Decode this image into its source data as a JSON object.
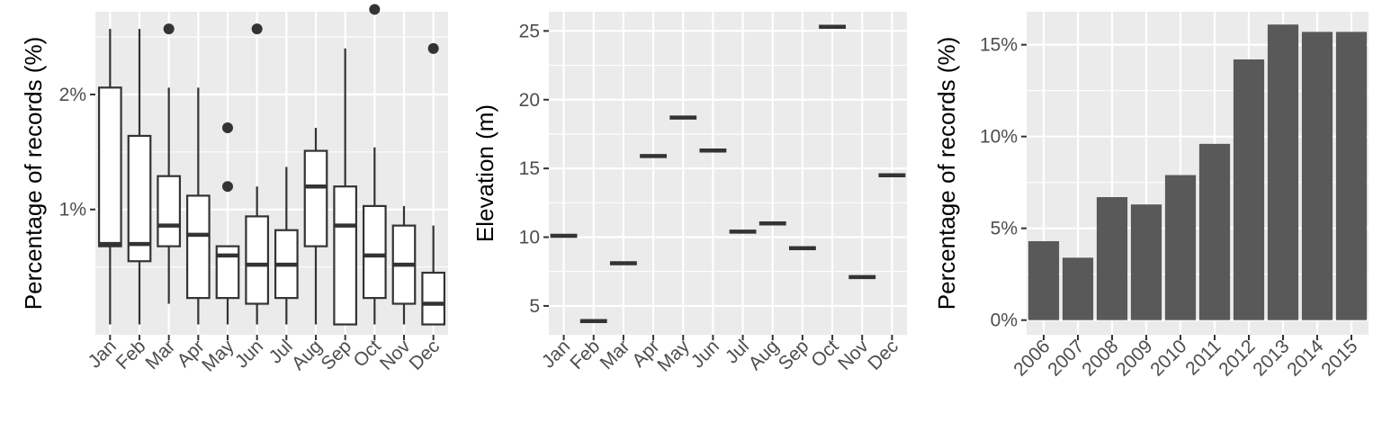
{
  "colors": {
    "panel": "#ebebeb",
    "grid": "#ffffff",
    "ink": "#333333",
    "bar": "#595959",
    "tick_text": "#4d4d4d"
  },
  "chart_data": [
    {
      "type": "box",
      "xlabel": "",
      "ylabel": "Percentage of records (%)",
      "ylim": [
        -0.09,
        2.72
      ],
      "yticks": [
        1,
        2
      ],
      "ytick_labels": [
        "1%",
        "2%"
      ],
      "categories": [
        "Jan",
        "Feb",
        "Mar",
        "Apr",
        "May",
        "Jun",
        "Jul",
        "Aug",
        "Sep",
        "Oct",
        "Nov",
        "Dec"
      ],
      "boxes": [
        {
          "low": 0.0,
          "q1": 0.68,
          "median": 0.7,
          "q3": 2.06,
          "high": 2.57,
          "outliers": []
        },
        {
          "low": 0.0,
          "q1": 0.55,
          "median": 0.7,
          "q3": 1.64,
          "high": 2.57,
          "outliers": []
        },
        {
          "low": 0.18,
          "q1": 0.68,
          "median": 0.86,
          "q3": 1.29,
          "high": 2.06,
          "outliers": [
            2.57
          ]
        },
        {
          "low": 0.0,
          "q1": 0.23,
          "median": 0.78,
          "q3": 1.12,
          "high": 2.06,
          "outliers": []
        },
        {
          "low": 0.0,
          "q1": 0.23,
          "median": 0.6,
          "q3": 0.68,
          "high": 0.68,
          "outliers": [
            1.2,
            1.71
          ]
        },
        {
          "low": 0.0,
          "q1": 0.18,
          "median": 0.52,
          "q3": 0.94,
          "high": 1.2,
          "outliers": [
            2.57
          ]
        },
        {
          "low": 0.0,
          "q1": 0.23,
          "median": 0.52,
          "q3": 0.82,
          "high": 1.37,
          "outliers": []
        },
        {
          "low": 0.0,
          "q1": 0.68,
          "median": 1.2,
          "q3": 1.51,
          "high": 1.71,
          "outliers": []
        },
        {
          "low": 0.0,
          "q1": 0.0,
          "median": 0.86,
          "q3": 1.2,
          "high": 2.4,
          "outliers": []
        },
        {
          "low": 0.0,
          "q1": 0.23,
          "median": 0.6,
          "q3": 1.03,
          "high": 1.54,
          "outliers": [
            2.74
          ]
        },
        {
          "low": 0.0,
          "q1": 0.18,
          "median": 0.52,
          "q3": 0.86,
          "high": 1.03,
          "outliers": []
        },
        {
          "low": 0.0,
          "q1": 0.0,
          "median": 0.18,
          "q3": 0.45,
          "high": 0.86,
          "outliers": [
            2.4
          ]
        }
      ]
    },
    {
      "type": "point-range",
      "xlabel": "",
      "ylabel": "Elevation (m)",
      "ylim": [
        2.9,
        26.4
      ],
      "yticks": [
        5,
        10,
        15,
        20,
        25
      ],
      "ytick_labels": [
        "5",
        "10",
        "15",
        "20",
        "25"
      ],
      "categories": [
        "Jan",
        "Feb",
        "Mar",
        "Apr",
        "May",
        "Jun",
        "Jul",
        "Aug",
        "Sep",
        "Oct",
        "Nov",
        "Dec"
      ],
      "values": [
        10.1,
        3.9,
        8.1,
        15.9,
        18.7,
        16.3,
        10.4,
        11.0,
        9.2,
        25.3,
        7.1,
        14.5
      ]
    },
    {
      "type": "bar",
      "xlabel": "",
      "ylabel": "Percentage of records (%)",
      "ylim": [
        -0.8,
        16.8
      ],
      "yticks": [
        0,
        5,
        10,
        15
      ],
      "ytick_labels": [
        "0%",
        "5%",
        "10%",
        "15%"
      ],
      "categories": [
        "2006",
        "2007",
        "2008",
        "2009",
        "2010",
        "2011",
        "2012",
        "2013",
        "2014",
        "2015"
      ],
      "values": [
        4.3,
        3.4,
        6.7,
        6.3,
        7.9,
        9.6,
        14.2,
        16.1,
        15.7,
        15.7
      ]
    }
  ]
}
